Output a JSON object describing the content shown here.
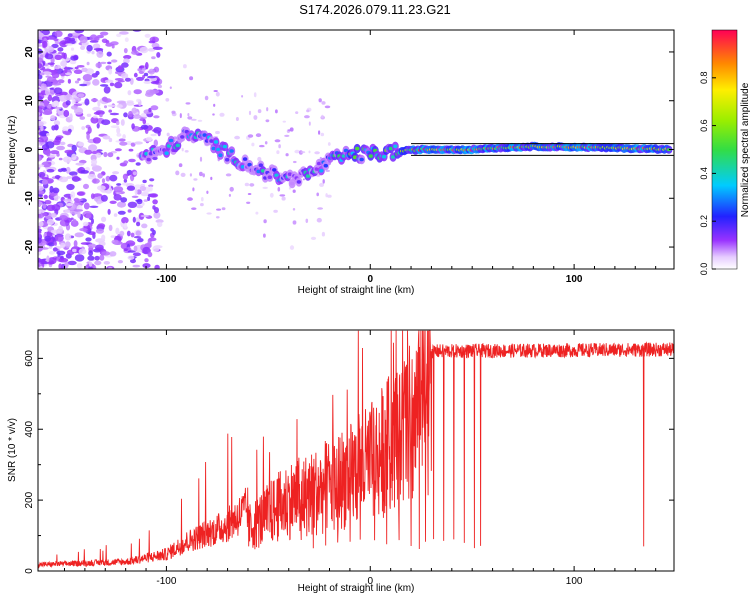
{
  "title": "S174.2026.079.11.23.G21",
  "chart_data": [
    {
      "type": "heatmap",
      "xlabel": "Height of straight line (km)",
      "ylabel": "Frequency (Hz)",
      "xlim": [
        -163,
        149
      ],
      "ylim": [
        -24.5,
        24.5
      ],
      "xticks": [
        -100,
        0,
        100
      ],
      "yticks": [
        -20,
        -10,
        0,
        10,
        20
      ],
      "colorbar": {
        "label": "Normalized spectral amplitude",
        "range": [
          0,
          1
        ],
        "ticks": [
          0.0,
          0.2,
          0.4,
          0.6,
          0.8
        ]
      },
      "ridge": [
        {
          "x": -110,
          "f": -1.5
        },
        {
          "x": -100,
          "f": 0
        },
        {
          "x": -90,
          "f": 3
        },
        {
          "x": -80,
          "f": 2
        },
        {
          "x": -70,
          "f": -1
        },
        {
          "x": -60,
          "f": -3
        },
        {
          "x": -50,
          "f": -5
        },
        {
          "x": -40,
          "f": -6
        },
        {
          "x": -30,
          "f": -5
        },
        {
          "x": -20,
          "f": -2.5
        },
        {
          "x": -10,
          "f": -1
        },
        {
          "x": 0,
          "f": -1
        },
        {
          "x": 10,
          "f": -0.5
        },
        {
          "x": 25,
          "f": 0
        },
        {
          "x": 50,
          "f": 0
        },
        {
          "x": 60,
          "f": 0.3
        },
        {
          "x": 80,
          "f": 0.6
        },
        {
          "x": 100,
          "f": 0.5
        },
        {
          "x": 120,
          "f": 0.3
        },
        {
          "x": 149,
          "f": 0
        }
      ]
    },
    {
      "type": "line",
      "xlabel": "Height of straight line (km)",
      "ylabel": "SNR (10 * v/v)",
      "xlim": [
        -163,
        149
      ],
      "ylim": [
        0,
        680
      ],
      "xticks": [
        -100,
        0,
        100
      ],
      "yticks": [
        0,
        200,
        400,
        600
      ],
      "series": [
        {
          "name": "SNR",
          "color": "#ee2222",
          "envelope": [
            {
              "x": -163,
              "y": 15
            },
            {
              "x": -120,
              "y": 22
            },
            {
              "x": -100,
              "y": 40
            },
            {
              "x": -90,
              "y": 70
            },
            {
              "x": -80,
              "y": 90
            },
            {
              "x": -70,
              "y": 110
            },
            {
              "x": -60,
              "y": 150
            },
            {
              "x": -50,
              "y": 200
            },
            {
              "x": -40,
              "y": 250
            },
            {
              "x": -30,
              "y": 270
            },
            {
              "x": -20,
              "y": 300
            },
            {
              "x": -10,
              "y": 340
            },
            {
              "x": 0,
              "y": 380
            },
            {
              "x": 10,
              "y": 450
            },
            {
              "x": 20,
              "y": 520
            },
            {
              "x": 25,
              "y": 580
            },
            {
              "x": 30,
              "y": 620
            },
            {
              "x": 149,
              "y": 625
            }
          ],
          "dips": [
            -34,
            -28,
            -22,
            -16,
            -10,
            -5,
            2,
            8,
            14,
            20,
            24,
            27,
            31,
            36,
            41,
            46,
            51,
            54,
            134
          ]
        }
      ]
    }
  ]
}
